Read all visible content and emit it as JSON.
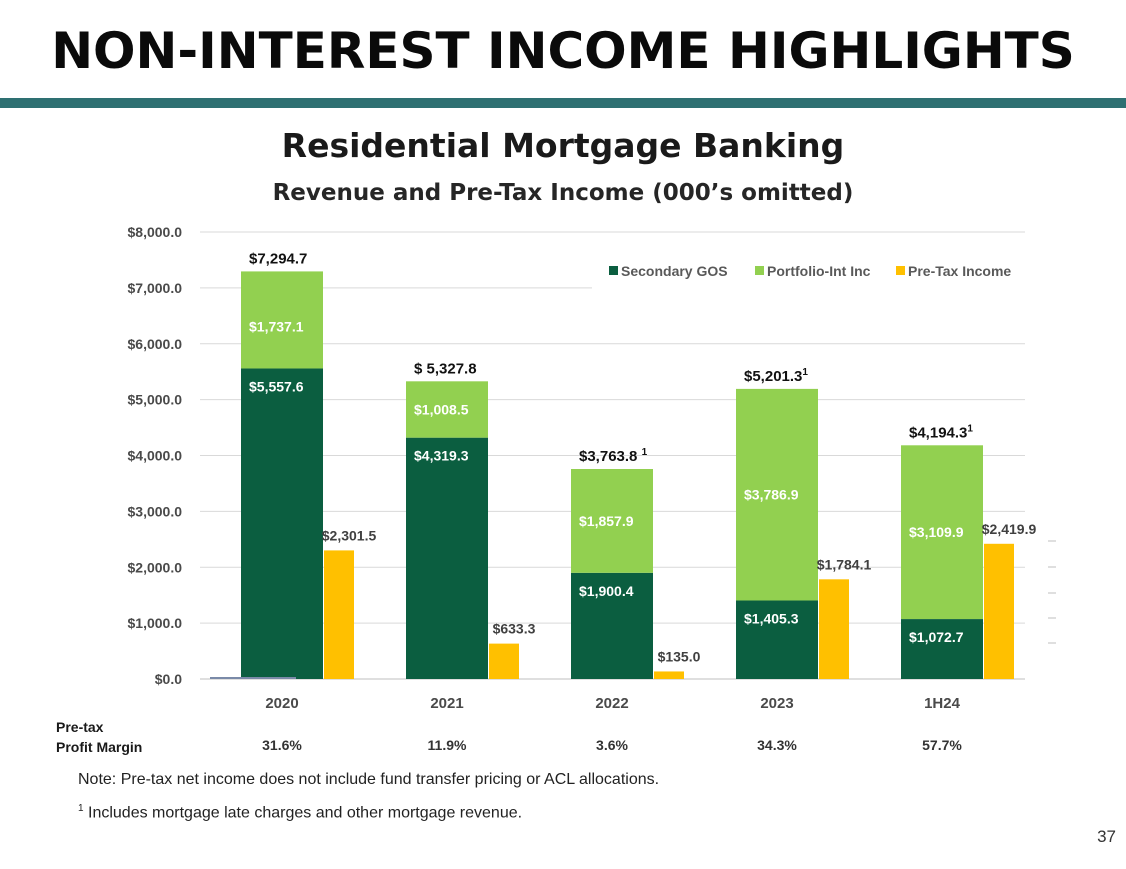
{
  "page": {
    "title": "NON-INTEREST INCOME HIGHLIGHTS",
    "page_number": "37"
  },
  "colors": {
    "rule": "#2e7072",
    "secondary_gos": "#0b5e40",
    "portfolio_int_inc": "#92d050",
    "pre_tax_income": "#ffc000"
  },
  "chart_data": {
    "type": "bar",
    "title": "Residential Mortgage Banking",
    "subtitle": "Revenue and Pre-Tax Income (000’s omitted)",
    "categories": [
      "2020",
      "2021",
      "2022",
      "2023",
      "1H24"
    ],
    "ylim": [
      0,
      8000
    ],
    "yticks": [
      0,
      1000,
      2000,
      3000,
      4000,
      5000,
      6000,
      7000,
      8000
    ],
    "ytick_labels": [
      "$0.0",
      "$1,000.0",
      "$2,000.0",
      "$3,000.0",
      "$4,000.0",
      "$5,000.0",
      "$6,000.0",
      "$7,000.0",
      "$8,000.0"
    ],
    "grid": true,
    "legend_position": "top-right",
    "stacked_series": [
      {
        "name": "Secondary GOS",
        "values": [
          5557.6,
          4319.3,
          1900.4,
          1405.3,
          1072.7
        ],
        "labels": [
          "$5,557.6",
          "$4,319.3",
          "$1,900.4",
          "$1,405.3",
          "$1,072.7"
        ]
      },
      {
        "name": "Portfolio-Int Inc",
        "values": [
          1737.1,
          1008.5,
          1857.9,
          3786.9,
          3109.9
        ],
        "labels": [
          "$1,737.1",
          "$1,008.5",
          "$1,857.9",
          "$3,786.9",
          "$3,109.9"
        ]
      }
    ],
    "side_series": {
      "name": "Pre-Tax Income",
      "values": [
        2301.5,
        633.3,
        135.0,
        1784.1,
        2419.9
      ],
      "labels": [
        "$2,301.5",
        "$633.3",
        "$135.0",
        "$1,784.1",
        "$2,419.9"
      ]
    },
    "totals": {
      "values": [
        7294.7,
        5327.8,
        3763.8,
        5201.3,
        4194.3
      ],
      "labels": [
        "$7,294.7",
        "$ 5,327.8",
        "$3,763.8 ",
        "$5,201.3",
        "$4,194.3"
      ],
      "footnote_marks": [
        "",
        "",
        "1",
        "1",
        "1"
      ]
    }
  },
  "margin_row": {
    "label_line1": "Pre-tax",
    "label_line2": "Profit Margin",
    "values": [
      "31.6%",
      "11.9%",
      "3.6%",
      "34.3%",
      "57.7%"
    ]
  },
  "notes": {
    "note": "Note:  Pre-tax net income does not include fund transfer pricing or ACL allocations.",
    "footnote_mark": "1",
    "footnote_text": " Includes mortgage late charges and other mortgage revenue."
  }
}
